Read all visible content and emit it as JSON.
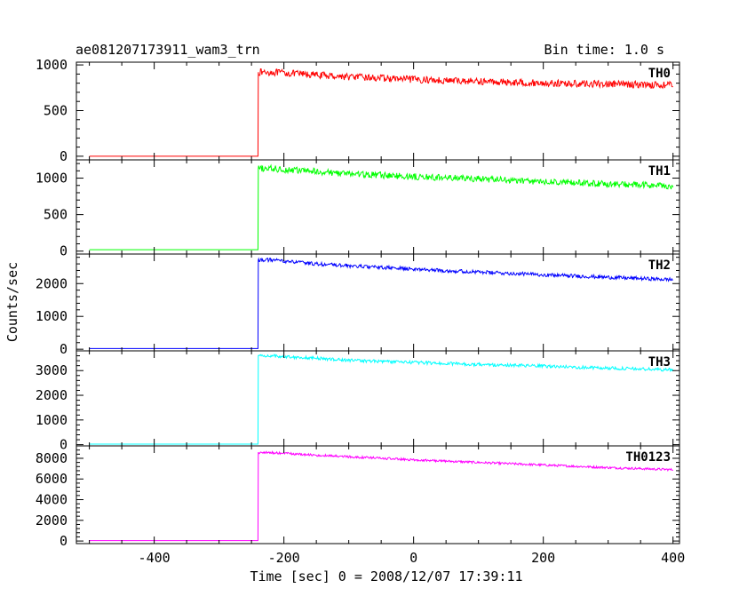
{
  "chart_data": {
    "type": "line",
    "title": "ae081207173911_wam3_trn",
    "subtitle": "Bin time: 1.0 s",
    "xlabel": "Time [sec] 0 = 2008/12/07 17:39:11",
    "ylabel": "Counts/sec",
    "xlim": [
      -520,
      410
    ],
    "x_ticks": [
      "-400",
      "-200",
      "0",
      "200",
      "400"
    ],
    "x_tick_values": [
      -400,
      -200,
      0,
      200,
      400
    ],
    "grid": false,
    "panels": [
      {
        "name": "TH0",
        "color": "#ff0000",
        "ylim": [
          -40,
          1030
        ],
        "y_ticks": [
          "0",
          "500",
          "1000"
        ],
        "y_tick_values": [
          0,
          500,
          1000
        ],
        "x": [
          -500,
          -240,
          -239.5,
          -220,
          -150,
          -100,
          0,
          100,
          200,
          300,
          400
        ],
        "y": [
          0,
          0,
          920,
          920,
          890,
          870,
          840,
          820,
          800,
          790,
          780
        ],
        "noise": 38
      },
      {
        "name": "TH1",
        "color": "#00ff00",
        "ylim": [
          -40,
          1250
        ],
        "y_ticks": [
          "0",
          "500",
          "1000"
        ],
        "y_tick_values": [
          0,
          500,
          1000
        ],
        "x": [
          -500,
          -240,
          -239.5,
          -220,
          -150,
          -100,
          0,
          100,
          200,
          300,
          400
        ],
        "y": [
          20,
          20,
          1130,
          1130,
          1090,
          1060,
          1020,
          990,
          950,
          920,
          890
        ],
        "noise": 45
      },
      {
        "name": "TH2",
        "color": "#0000ff",
        "ylim": [
          -50,
          2900
        ],
        "y_ticks": [
          "0",
          "1000",
          "2000"
        ],
        "y_tick_values": [
          0,
          1000,
          2000
        ],
        "x": [
          -500,
          -240,
          -239.5,
          -220,
          -150,
          -100,
          0,
          100,
          200,
          300,
          400
        ],
        "y": [
          20,
          20,
          2720,
          2720,
          2600,
          2540,
          2440,
          2350,
          2270,
          2190,
          2120
        ],
        "noise": 55
      },
      {
        "name": "TH3",
        "color": "#00ffff",
        "ylim": [
          -50,
          3800
        ],
        "y_ticks": [
          "0",
          "1000",
          "2000",
          "3000"
        ],
        "y_tick_values": [
          0,
          1000,
          2000,
          3000
        ],
        "x": [
          -500,
          -240,
          -239.5,
          -220,
          -150,
          -100,
          0,
          100,
          200,
          300,
          400
        ],
        "y": [
          20,
          20,
          3600,
          3600,
          3500,
          3420,
          3330,
          3250,
          3180,
          3100,
          3030
        ],
        "noise": 65
      },
      {
        "name": "TH0123",
        "color": "#ff00ff",
        "ylim": [
          -250,
          9200
        ],
        "y_ticks": [
          "0",
          "2000",
          "4000",
          "6000",
          "8000"
        ],
        "y_tick_values": [
          0,
          2000,
          4000,
          6000,
          8000
        ],
        "x": [
          -500,
          -240,
          -239.5,
          -220,
          -150,
          -100,
          0,
          100,
          200,
          300,
          400
        ],
        "y": [
          40,
          40,
          8550,
          8550,
          8300,
          8150,
          7850,
          7600,
          7350,
          7100,
          6900
        ],
        "noise": 110
      }
    ]
  }
}
